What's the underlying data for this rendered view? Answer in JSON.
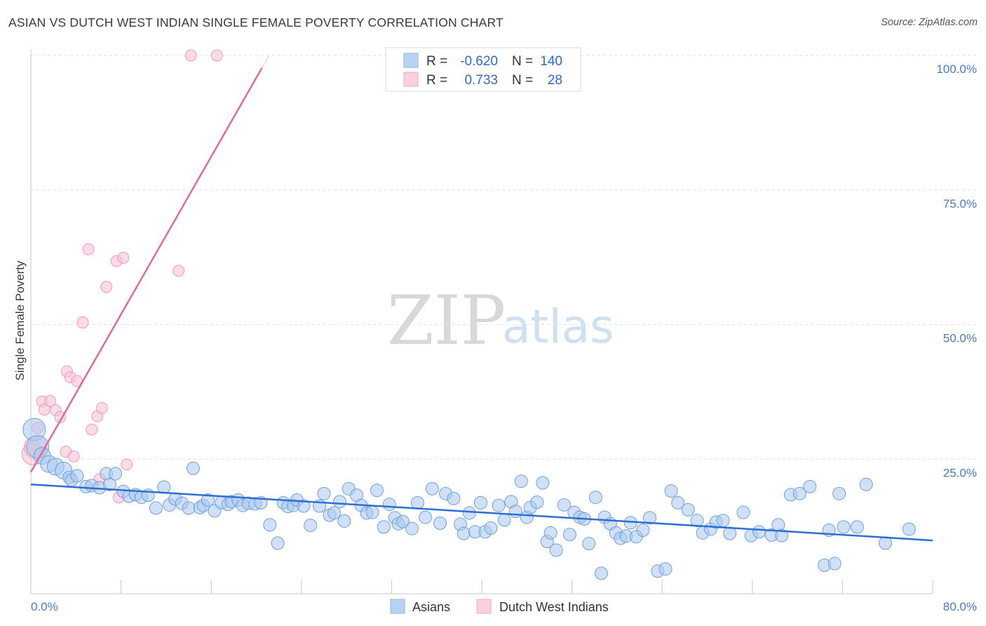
{
  "title": "ASIAN VS DUTCH WEST INDIAN SINGLE FEMALE POVERTY CORRELATION CHART",
  "source": "Source: ZipAtlas.com",
  "watermark": {
    "part1": "ZIP",
    "part2": "atlas"
  },
  "legend_top": {
    "rows": [
      {
        "r_label": "R =",
        "r_value": "-0.620",
        "n_label": "N =",
        "n_value": "140",
        "color": "#8ab4ec"
      },
      {
        "r_label": "R =",
        "r_value": "0.733",
        "n_label": "N =",
        "n_value": "28",
        "color": "#f4a9c2"
      }
    ]
  },
  "legend_bottom": [
    {
      "label": "Asians",
      "color": "#8ab4ec"
    },
    {
      "label": "Dutch West Indians",
      "color": "#f4a9c2"
    }
  ],
  "colors": {
    "asians_fill": "#a9c8f0",
    "asians_stroke": "#6f9fdf",
    "asians_line": "#2d6fd1",
    "dwi_fill": "#f8c4d6",
    "dwi_stroke": "#ee9bb7",
    "dwi_line": "#e06b9a",
    "tick_label": "#4a7cc4"
  },
  "chart_data": {
    "type": "scatter",
    "ylabel": "Single Female Poverty",
    "xlim": [
      0,
      80
    ],
    "ylim": [
      0,
      100
    ],
    "x_tick_labels": [
      {
        "value": 0,
        "label": "0.0%"
      },
      {
        "value": 80,
        "label": "80.0%"
      }
    ],
    "x_minor_ticks": [
      8,
      16,
      24,
      32,
      40,
      48,
      56,
      64,
      72
    ],
    "y_ticks": [
      {
        "value": 25,
        "label": "25.0%"
      },
      {
        "value": 50,
        "label": "50.0%"
      },
      {
        "value": 75,
        "label": "75.0%"
      },
      {
        "value": 100,
        "label": "100.0%"
      }
    ],
    "grid": true,
    "series": [
      {
        "name": "Asians",
        "trend": {
          "x": [
            0,
            80
          ],
          "y": [
            20.3,
            9.9
          ]
        },
        "points": [
          [
            0.3,
            30.5
          ],
          [
            0.6,
            27.3
          ],
          [
            1.0,
            25.6
          ],
          [
            1.6,
            24.1
          ],
          [
            2.2,
            23.6
          ],
          [
            2.9,
            22.9
          ],
          [
            3.4,
            21.6
          ],
          [
            3.6,
            21.1
          ],
          [
            4.1,
            21.9
          ],
          [
            4.9,
            19.9
          ],
          [
            5.4,
            20.1
          ],
          [
            6.1,
            19.7
          ],
          [
            6.7,
            22.3
          ],
          [
            7.0,
            20.3
          ],
          [
            7.5,
            22.3
          ],
          [
            8.2,
            19.0
          ],
          [
            8.7,
            18.1
          ],
          [
            9.3,
            18.4
          ],
          [
            9.8,
            17.9
          ],
          [
            10.4,
            18.3
          ],
          [
            11.1,
            15.9
          ],
          [
            11.8,
            19.8
          ],
          [
            12.3,
            16.5
          ],
          [
            12.8,
            17.6
          ],
          [
            13.4,
            16.8
          ],
          [
            14.0,
            15.9
          ],
          [
            14.4,
            23.3
          ],
          [
            15.0,
            16.0
          ],
          [
            15.3,
            16.4
          ],
          [
            15.7,
            17.4
          ],
          [
            16.3,
            15.4
          ],
          [
            16.9,
            16.9
          ],
          [
            17.5,
            16.6
          ],
          [
            17.8,
            17.1
          ],
          [
            18.4,
            17.4
          ],
          [
            18.8,
            16.4
          ],
          [
            19.3,
            16.8
          ],
          [
            19.9,
            16.7
          ],
          [
            20.4,
            16.9
          ],
          [
            21.2,
            12.8
          ],
          [
            21.9,
            9.4
          ],
          [
            22.4,
            16.9
          ],
          [
            22.8,
            16.2
          ],
          [
            23.3,
            16.4
          ],
          [
            23.6,
            17.4
          ],
          [
            24.2,
            16.3
          ],
          [
            24.8,
            12.7
          ],
          [
            25.6,
            16.3
          ],
          [
            26.0,
            18.6
          ],
          [
            26.5,
            14.6
          ],
          [
            26.9,
            15.0
          ],
          [
            27.4,
            17.1
          ],
          [
            27.8,
            13.5
          ],
          [
            28.2,
            19.5
          ],
          [
            28.9,
            18.3
          ],
          [
            29.3,
            16.4
          ],
          [
            29.8,
            15.0
          ],
          [
            30.3,
            15.1
          ],
          [
            30.7,
            19.2
          ],
          [
            31.3,
            12.4
          ],
          [
            31.8,
            16.6
          ],
          [
            32.3,
            14.1
          ],
          [
            32.6,
            13.0
          ],
          [
            33.0,
            13.4
          ],
          [
            33.8,
            12.1
          ],
          [
            34.3,
            16.9
          ],
          [
            35.0,
            14.2
          ],
          [
            35.6,
            19.5
          ],
          [
            36.3,
            13.1
          ],
          [
            36.8,
            18.6
          ],
          [
            37.5,
            17.7
          ],
          [
            38.1,
            12.9
          ],
          [
            38.4,
            11.2
          ],
          [
            38.9,
            15.0
          ],
          [
            39.4,
            11.5
          ],
          [
            39.9,
            16.9
          ],
          [
            40.3,
            11.5
          ],
          [
            40.8,
            12.2
          ],
          [
            41.5,
            16.4
          ],
          [
            42.0,
            13.7
          ],
          [
            42.6,
            17.1
          ],
          [
            43.0,
            15.3
          ],
          [
            43.5,
            20.9
          ],
          [
            44.0,
            14.2
          ],
          [
            44.3,
            16.0
          ],
          [
            44.9,
            17.0
          ],
          [
            45.4,
            20.6
          ],
          [
            45.8,
            9.7
          ],
          [
            46.1,
            11.3
          ],
          [
            46.6,
            8.1
          ],
          [
            47.3,
            16.5
          ],
          [
            47.8,
            11.0
          ],
          [
            48.2,
            15.1
          ],
          [
            48.7,
            14.2
          ],
          [
            49.1,
            13.9
          ],
          [
            49.5,
            9.3
          ],
          [
            50.1,
            17.9
          ],
          [
            50.6,
            3.8
          ],
          [
            50.9,
            14.2
          ],
          [
            51.4,
            13.0
          ],
          [
            51.9,
            11.3
          ],
          [
            52.3,
            10.3
          ],
          [
            52.8,
            10.7
          ],
          [
            53.2,
            13.2
          ],
          [
            53.7,
            10.6
          ],
          [
            54.3,
            11.8
          ],
          [
            54.9,
            14.1
          ],
          [
            55.6,
            4.2
          ],
          [
            56.3,
            4.6
          ],
          [
            56.8,
            19.1
          ],
          [
            57.4,
            16.9
          ],
          [
            58.3,
            15.6
          ],
          [
            59.1,
            13.6
          ],
          [
            59.6,
            11.3
          ],
          [
            60.3,
            12.0
          ],
          [
            60.8,
            13.3
          ],
          [
            61.4,
            13.6
          ],
          [
            62.0,
            11.2
          ],
          [
            63.2,
            15.1
          ],
          [
            63.9,
            10.8
          ],
          [
            64.6,
            11.5
          ],
          [
            65.7,
            10.9
          ],
          [
            66.3,
            12.8
          ],
          [
            66.6,
            10.8
          ],
          [
            67.4,
            18.4
          ],
          [
            68.2,
            18.6
          ],
          [
            69.1,
            19.9
          ],
          [
            70.4,
            5.3
          ],
          [
            70.8,
            11.8
          ],
          [
            71.3,
            5.6
          ],
          [
            71.7,
            18.6
          ],
          [
            72.1,
            12.4
          ],
          [
            73.3,
            12.4
          ],
          [
            74.1,
            20.3
          ],
          [
            75.8,
            9.4
          ],
          [
            77.9,
            12.0
          ]
        ]
      },
      {
        "name": "Dutch West Indians",
        "trend": {
          "x": [
            0,
            20.5
          ],
          "y": [
            22.6,
            97.7
          ]
        },
        "points": [
          [
            0.2,
            26.0
          ],
          [
            0.4,
            27.2
          ],
          [
            0.6,
            30.8
          ],
          [
            1.0,
            35.7
          ],
          [
            1.2,
            34.2
          ],
          [
            1.7,
            35.8
          ],
          [
            2.2,
            34.1
          ],
          [
            2.6,
            32.8
          ],
          [
            3.1,
            26.4
          ],
          [
            3.2,
            41.3
          ],
          [
            3.5,
            40.2
          ],
          [
            3.8,
            25.5
          ],
          [
            4.1,
            39.5
          ],
          [
            4.6,
            50.4
          ],
          [
            5.1,
            64.0
          ],
          [
            5.4,
            30.5
          ],
          [
            5.9,
            33.0
          ],
          [
            6.1,
            21.3
          ],
          [
            6.3,
            34.5
          ],
          [
            6.7,
            57.0
          ],
          [
            7.6,
            61.8
          ],
          [
            7.8,
            17.9
          ],
          [
            8.2,
            62.4
          ],
          [
            8.5,
            24.0
          ],
          [
            13.1,
            60.0
          ],
          [
            14.2,
            100.0
          ],
          [
            16.5,
            100.0
          ]
        ]
      }
    ]
  }
}
